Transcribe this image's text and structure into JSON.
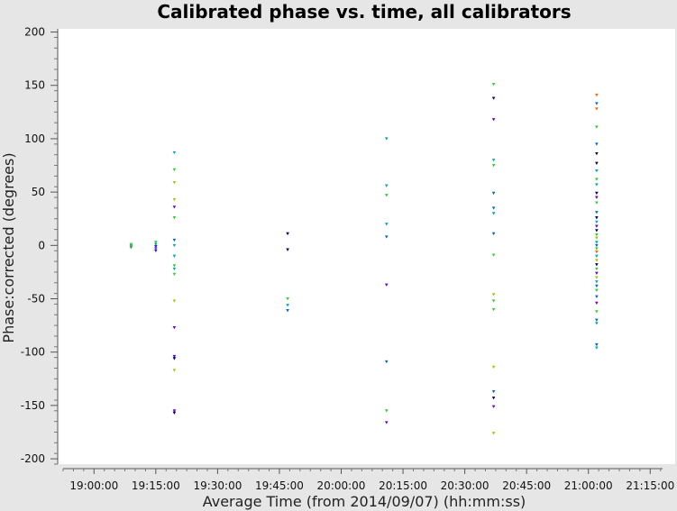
{
  "chart_data": {
    "type": "scatter",
    "title": "Calibrated phase vs. time, all calibrators",
    "xlabel": "Average Time (from 2014/09/07) (hh:mm:ss)",
    "ylabel": "Phase:corrected (degrees)",
    "xlim": [
      "18:52:30",
      "21:18:00"
    ],
    "ylim": [
      -205,
      203
    ],
    "x_ticks": [
      "19:00:00",
      "19:15:00",
      "19:30:00",
      "19:45:00",
      "20:00:00",
      "20:15:00",
      "20:30:00",
      "20:45:00",
      "21:00:00",
      "21:15:00"
    ],
    "y_ticks": [
      200,
      150,
      100,
      50,
      0,
      -50,
      -100,
      -150,
      -200
    ],
    "grid": false,
    "marker": "triangle-down",
    "colors": {
      "background": "#e6e6e6",
      "plot_area": "#ffffff",
      "axis": "#555555",
      "markers": [
        "#00aaaa",
        "#33cc33",
        "#6600cc",
        "#0066cc",
        "#ff6600",
        "#99cc00",
        "#000066",
        "#cc0000"
      ]
    },
    "points": [
      {
        "x": "19:09:00",
        "y": 0,
        "c": 0
      },
      {
        "x": "19:09:00",
        "y": -1,
        "c": 4
      },
      {
        "x": "19:09:00",
        "y": -2,
        "c": 0
      },
      {
        "x": "19:09:00",
        "y": 1,
        "c": 1
      },
      {
        "x": "19:15:00",
        "y": 3,
        "c": 1
      },
      {
        "x": "19:15:00",
        "y": 1,
        "c": 0
      },
      {
        "x": "19:15:00",
        "y": -1,
        "c": 2
      },
      {
        "x": "19:15:00",
        "y": -3,
        "c": 3
      },
      {
        "x": "19:15:00",
        "y": -5,
        "c": 2
      },
      {
        "x": "19:19:30",
        "y": 87,
        "c": 0
      },
      {
        "x": "19:19:30",
        "y": 71,
        "c": 1
      },
      {
        "x": "19:19:30",
        "y": 59,
        "c": 5
      },
      {
        "x": "19:19:30",
        "y": 43,
        "c": 5
      },
      {
        "x": "19:19:30",
        "y": 36,
        "c": 2
      },
      {
        "x": "19:19:30",
        "y": 26,
        "c": 1
      },
      {
        "x": "19:19:30",
        "y": 5,
        "c": 3
      },
      {
        "x": "19:19:30",
        "y": 0,
        "c": 0
      },
      {
        "x": "19:19:30",
        "y": -10,
        "c": 0
      },
      {
        "x": "19:19:30",
        "y": -19,
        "c": 1
      },
      {
        "x": "19:19:30",
        "y": -22,
        "c": 0
      },
      {
        "x": "19:19:30",
        "y": -27,
        "c": 1
      },
      {
        "x": "19:19:30",
        "y": -52,
        "c": 5
      },
      {
        "x": "19:19:30",
        "y": -77,
        "c": 2
      },
      {
        "x": "19:19:30",
        "y": -104,
        "c": 2
      },
      {
        "x": "19:19:30",
        "y": -106,
        "c": 6
      },
      {
        "x": "19:19:30",
        "y": -117,
        "c": 5
      },
      {
        "x": "19:19:30",
        "y": -155,
        "c": 2
      },
      {
        "x": "19:19:30",
        "y": -157,
        "c": 6
      },
      {
        "x": "19:47:00",
        "y": 11,
        "c": 6
      },
      {
        "x": "19:47:00",
        "y": -4,
        "c": 6
      },
      {
        "x": "19:47:00",
        "y": -50,
        "c": 1
      },
      {
        "x": "19:47:00",
        "y": -56,
        "c": 0
      },
      {
        "x": "19:47:00",
        "y": -61,
        "c": 3
      },
      {
        "x": "20:11:00",
        "y": 100,
        "c": 0
      },
      {
        "x": "20:11:00",
        "y": 56,
        "c": 0
      },
      {
        "x": "20:11:00",
        "y": 47,
        "c": 1
      },
      {
        "x": "20:11:00",
        "y": 20,
        "c": 0
      },
      {
        "x": "20:11:00",
        "y": 8,
        "c": 3
      },
      {
        "x": "20:11:00",
        "y": -37,
        "c": 2
      },
      {
        "x": "20:11:00",
        "y": -109,
        "c": 3
      },
      {
        "x": "20:11:00",
        "y": -155,
        "c": 1
      },
      {
        "x": "20:11:00",
        "y": -166,
        "c": 2
      },
      {
        "x": "20:37:00",
        "y": 151,
        "c": 1
      },
      {
        "x": "20:37:00",
        "y": 138,
        "c": 6
      },
      {
        "x": "20:37:00",
        "y": 118,
        "c": 2
      },
      {
        "x": "20:37:00",
        "y": 80,
        "c": 0
      },
      {
        "x": "20:37:00",
        "y": 75,
        "c": 1
      },
      {
        "x": "20:37:00",
        "y": 49,
        "c": 3
      },
      {
        "x": "20:37:00",
        "y": 35,
        "c": 3
      },
      {
        "x": "20:37:00",
        "y": 30,
        "c": 0
      },
      {
        "x": "20:37:00",
        "y": 11,
        "c": 3
      },
      {
        "x": "20:37:00",
        "y": -9,
        "c": 1
      },
      {
        "x": "20:37:00",
        "y": -46,
        "c": 5
      },
      {
        "x": "20:37:00",
        "y": -52,
        "c": 1
      },
      {
        "x": "20:37:00",
        "y": -60,
        "c": 1
      },
      {
        "x": "20:37:00",
        "y": -114,
        "c": 5
      },
      {
        "x": "20:37:00",
        "y": -137,
        "c": 3
      },
      {
        "x": "20:37:00",
        "y": -143,
        "c": 6
      },
      {
        "x": "20:37:00",
        "y": -151,
        "c": 2
      },
      {
        "x": "20:37:00",
        "y": -176,
        "c": 5
      },
      {
        "x": "21:02:00",
        "y": 141,
        "c": 4
      },
      {
        "x": "21:02:00",
        "y": 133,
        "c": 3
      },
      {
        "x": "21:02:00",
        "y": 128,
        "c": 4
      },
      {
        "x": "21:02:00",
        "y": 111,
        "c": 1
      },
      {
        "x": "21:02:00",
        "y": 95,
        "c": 3
      },
      {
        "x": "21:02:00",
        "y": 86,
        "c": 6
      },
      {
        "x": "21:02:00",
        "y": 77,
        "c": 6
      },
      {
        "x": "21:02:00",
        "y": 70,
        "c": 0
      },
      {
        "x": "21:02:00",
        "y": 62,
        "c": 1
      },
      {
        "x": "21:02:00",
        "y": 57,
        "c": 0
      },
      {
        "x": "21:02:00",
        "y": 49,
        "c": 6
      },
      {
        "x": "21:02:00",
        "y": 45,
        "c": 2
      },
      {
        "x": "21:02:00",
        "y": 40,
        "c": 1
      },
      {
        "x": "21:02:00",
        "y": 31,
        "c": 3
      },
      {
        "x": "21:02:00",
        "y": 26,
        "c": 6
      },
      {
        "x": "21:02:00",
        "y": 22,
        "c": 0
      },
      {
        "x": "21:02:00",
        "y": 18,
        "c": 2
      },
      {
        "x": "21:02:00",
        "y": 14,
        "c": 6
      },
      {
        "x": "21:02:00",
        "y": 10,
        "c": 1
      },
      {
        "x": "21:02:00",
        "y": 7,
        "c": 5
      },
      {
        "x": "21:02:00",
        "y": 3,
        "c": 0
      },
      {
        "x": "21:02:00",
        "y": 0,
        "c": 3
      },
      {
        "x": "21:02:00",
        "y": -3,
        "c": 1
      },
      {
        "x": "21:02:00",
        "y": -6,
        "c": 4
      },
      {
        "x": "21:02:00",
        "y": -10,
        "c": 0
      },
      {
        "x": "21:02:00",
        "y": -14,
        "c": 5
      },
      {
        "x": "21:02:00",
        "y": -18,
        "c": 6
      },
      {
        "x": "21:02:00",
        "y": -22,
        "c": 1
      },
      {
        "x": "21:02:00",
        "y": -26,
        "c": 2
      },
      {
        "x": "21:02:00",
        "y": -30,
        "c": 5
      },
      {
        "x": "21:02:00",
        "y": -34,
        "c": 0
      },
      {
        "x": "21:02:00",
        "y": -38,
        "c": 3
      },
      {
        "x": "21:02:00",
        "y": -42,
        "c": 1
      },
      {
        "x": "21:02:00",
        "y": -48,
        "c": 3
      },
      {
        "x": "21:02:00",
        "y": -54,
        "c": 2
      },
      {
        "x": "21:02:00",
        "y": -62,
        "c": 1
      },
      {
        "x": "21:02:00",
        "y": -70,
        "c": 3
      },
      {
        "x": "21:02:00",
        "y": -73,
        "c": 0
      },
      {
        "x": "21:02:00",
        "y": -93,
        "c": 3
      },
      {
        "x": "21:02:00",
        "y": -96,
        "c": 0
      }
    ]
  }
}
